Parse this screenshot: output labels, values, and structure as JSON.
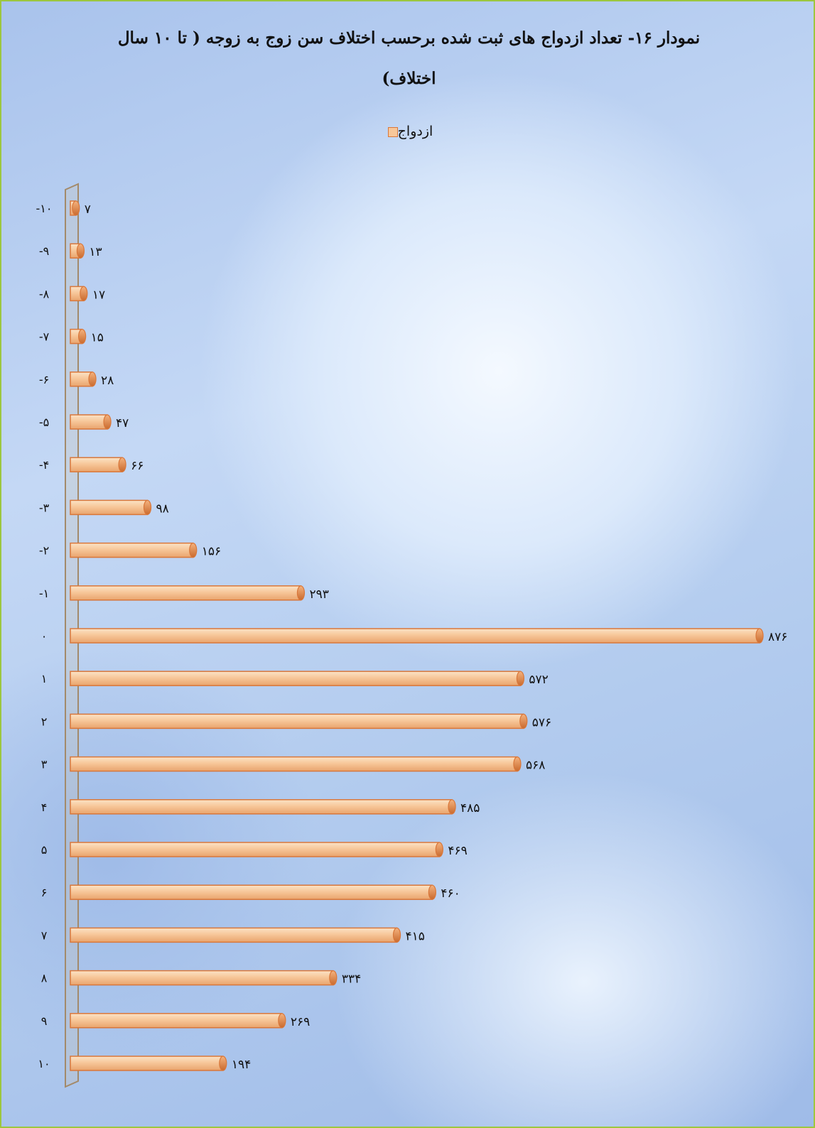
{
  "chart_data": {
    "type": "bar",
    "orientation": "horizontal",
    "title": "نمودار ۱۶- تعداد ازدواج های ثبت شده برحسب اختلاف سن زوج به زوجه ( تا ۱۰ سال اختلاف)",
    "title_line1": "نمودار ۱۶- تعداد ازدواج های ثبت شده برحسب اختلاف سن زوج به زوجه ( تا ۱۰ سال",
    "title_line2": "اختلاف)",
    "legend": {
      "position": "top",
      "entries": [
        "ازدواج"
      ]
    },
    "categories": [
      "-۱۰",
      "-۹",
      "-۸",
      "-۷",
      "-۶",
      "-۵",
      "-۴",
      "-۳",
      "-۲",
      "-۱",
      "۰",
      "۱",
      "۲",
      "۳",
      "۴",
      "۵",
      "۶",
      "۷",
      "۸",
      "۹",
      "۱۰"
    ],
    "series": [
      {
        "name": "ازدواج",
        "values": [
          7,
          13,
          17,
          15,
          28,
          47,
          66,
          98,
          156,
          293,
          876,
          572,
          576,
          568,
          485,
          469,
          460,
          415,
          334,
          269,
          194
        ],
        "labels": [
          "۷",
          "۱۳",
          "۱۷",
          "۱۵",
          "۲۸",
          "۴۷",
          "۶۶",
          "۹۸",
          "۱۵۶",
          "۲۹۳",
          "۸۷۶",
          "۵۷۲",
          "۵۷۶",
          "۵۶۸",
          "۴۸۵",
          "۴۶۹",
          "۴۶۰",
          "۴۱۵",
          "۳۳۴",
          "۲۶۹",
          "۱۹۴"
        ]
      }
    ],
    "xlim": [
      0,
      876
    ],
    "grid": false,
    "colors": {
      "bar_fill": "#f7c79a",
      "bar_edge": "#d9773a",
      "axis": "#a38a6a"
    }
  }
}
